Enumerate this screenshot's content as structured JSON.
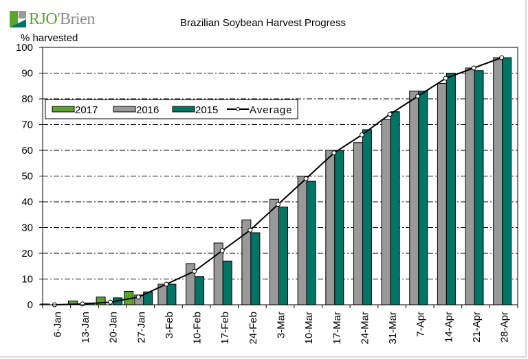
{
  "branding": {
    "logo_part1": "RJO",
    "logo_part2": "'Brien"
  },
  "chart_data": {
    "type": "bar",
    "title": "Brazilian Soybean Harvest Progress",
    "xlabel": "",
    "ylabel": "% harvested",
    "ylim": [
      0,
      100
    ],
    "yticks": [
      0,
      10,
      20,
      30,
      40,
      50,
      60,
      70,
      80,
      90,
      100
    ],
    "grid": true,
    "legend_position": "upper-left",
    "categories": [
      "6-Jan",
      "13-Jan",
      "20-Jan",
      "27-Jan",
      "3-Feb",
      "10-Feb",
      "17-Feb",
      "24-Feb",
      "3-Mar",
      "10-Mar",
      "17-Mar",
      "24-Mar",
      "31-Mar",
      "7-Apr",
      "14-Apr",
      "21-Apr",
      "28-Apr"
    ],
    "series": [
      {
        "name": "2017",
        "kind": "bar",
        "color": "#5aa628",
        "values": [
          0.3,
          1.5,
          3,
          5.2,
          null,
          null,
          null,
          null,
          null,
          null,
          null,
          null,
          null,
          null,
          null,
          null,
          null
        ]
      },
      {
        "name": "2016",
        "kind": "bar",
        "color": "#999999",
        "values": [
          0,
          0,
          0,
          3.8,
          8,
          16,
          24,
          33,
          41,
          50,
          60,
          63,
          72,
          83,
          86,
          92,
          96
        ]
      },
      {
        "name": "2015",
        "kind": "bar",
        "color": "#007565",
        "values": [
          0,
          0.7,
          2.7,
          5,
          8,
          11,
          17,
          28,
          38,
          48,
          60,
          68,
          75,
          83,
          90,
          91,
          96
        ]
      },
      {
        "name": "Average",
        "kind": "line",
        "color": "#000000",
        "values": [
          0,
          0.3,
          1,
          3,
          8,
          13,
          21,
          29,
          39,
          49,
          59,
          66,
          74,
          81,
          88,
          92,
          96
        ]
      }
    ]
  }
}
